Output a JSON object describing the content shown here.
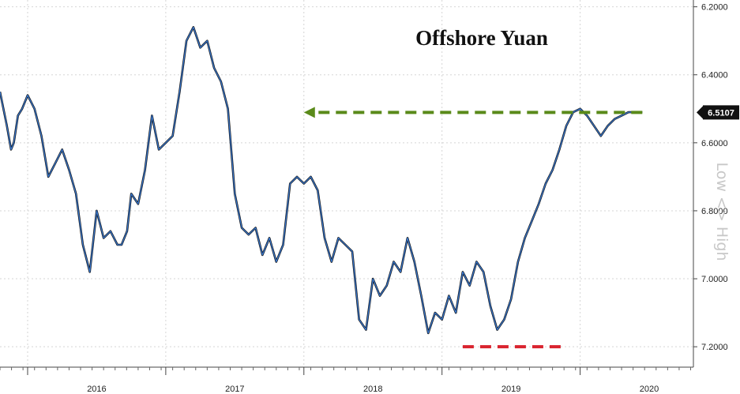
{
  "chart_data": {
    "type": "line",
    "title": "Offshore Yuan",
    "axis_note": "Low <> High",
    "y_inverted": true,
    "ylim": [
      6.18,
      7.26
    ],
    "yticks": [
      "6.2000",
      "6.4000",
      "6.6000",
      "6.8000",
      "7.0000",
      "7.2000"
    ],
    "ytick_values": [
      6.2,
      6.4,
      6.6,
      6.8,
      7.0,
      7.2
    ],
    "x_labels": [
      "2016",
      "2017",
      "2018",
      "2019",
      "2020"
    ],
    "xlim": [
      2015.8,
      2020.82
    ],
    "grid": true,
    "last_value": 6.5107,
    "last_value_label": "6.5107",
    "series": [
      {
        "color": "#3a7bd5",
        "x": [
          2015.8,
          2015.85,
          2015.88,
          2015.9,
          2015.93,
          2015.96,
          2016.0,
          2016.05,
          2016.1,
          2016.15,
          2016.2,
          2016.25,
          2016.3,
          2016.35,
          2016.4,
          2016.45,
          2016.5,
          2016.55,
          2016.6,
          2016.65,
          2016.68,
          2016.72,
          2016.75,
          2016.8,
          2016.85,
          2016.9,
          2016.95,
          2017.0,
          2017.05,
          2017.1,
          2017.15,
          2017.2,
          2017.25,
          2017.3,
          2017.35,
          2017.4,
          2017.45,
          2017.5,
          2017.55,
          2017.6,
          2017.65,
          2017.7,
          2017.75,
          2017.8,
          2017.85,
          2017.9,
          2017.95,
          2018.0,
          2018.05,
          2018.1,
          2018.15,
          2018.2,
          2018.25,
          2018.3,
          2018.35,
          2018.4,
          2018.45,
          2018.5,
          2018.55,
          2018.6,
          2018.65,
          2018.7,
          2018.75,
          2018.8,
          2018.85,
          2018.9,
          2018.95,
          2019.0,
          2019.05,
          2019.1,
          2019.15,
          2019.2,
          2019.25,
          2019.3,
          2019.35,
          2019.4,
          2019.45,
          2019.5,
          2019.55,
          2019.6,
          2019.65,
          2019.7,
          2019.75,
          2019.8,
          2019.85,
          2019.9,
          2019.95,
          2020.0,
          2020.05,
          2020.1,
          2020.15,
          2020.2,
          2020.25,
          2020.3,
          2020.35,
          2020.4,
          2020.45
        ],
        "y": [
          6.45,
          6.55,
          6.62,
          6.6,
          6.52,
          6.5,
          6.46,
          6.5,
          6.58,
          6.7,
          6.66,
          6.62,
          6.68,
          6.75,
          6.9,
          6.98,
          6.8,
          6.88,
          6.86,
          6.9,
          6.9,
          6.86,
          6.75,
          6.78,
          6.68,
          6.52,
          6.62,
          6.6,
          6.58,
          6.45,
          6.3,
          6.26,
          6.32,
          6.3,
          6.38,
          6.42,
          6.5,
          6.75,
          6.85,
          6.87,
          6.85,
          6.93,
          6.88,
          6.95,
          6.9,
          6.72,
          6.7,
          6.72,
          6.7,
          6.74,
          6.88,
          6.95,
          6.88,
          6.9,
          6.92,
          7.12,
          7.15,
          7.0,
          7.05,
          7.02,
          6.95,
          6.98,
          6.88,
          6.95,
          7.05,
          7.16,
          7.1,
          7.12,
          7.05,
          7.1,
          6.98,
          7.02,
          6.95,
          6.98,
          7.08,
          7.15,
          7.12,
          7.06,
          6.95,
          6.88,
          6.83,
          6.78,
          6.72,
          6.68,
          6.62,
          6.55,
          6.51,
          6.5,
          6.52,
          6.55,
          6.58,
          6.55,
          6.53,
          6.52,
          6.51,
          6.51,
          6.51
        ]
      }
    ],
    "annotations": [
      {
        "type": "arrow",
        "color": "#5a8a1a",
        "from_y": 6.5107,
        "label": ""
      },
      {
        "type": "level-line",
        "color": "#d9232e",
        "y": 7.2,
        "label": ""
      }
    ]
  }
}
